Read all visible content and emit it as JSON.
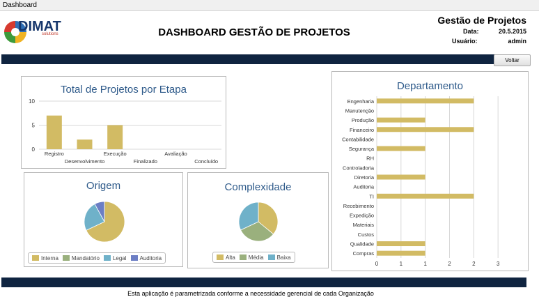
{
  "window": {
    "title": "Dashboard"
  },
  "header": {
    "logo_text": "DIMAT",
    "logo_sub": "solutions",
    "title": "DASHBOARD GESTÃO DE PROJETOS",
    "app_title": "Gestão de Projetos",
    "date_label": "Data:",
    "date_value": "20.5.2015",
    "user_label": "Usuário:",
    "user_value": "admin"
  },
  "toolbar": {
    "back_label": "Voltar"
  },
  "footer": {
    "text": "Esta aplicação é parametrizada conforme a necessidade gerencial de cada Organização"
  },
  "colors": {
    "gold": "#d2bb64",
    "sage": "#9ab07d",
    "sky": "#6fb1c9",
    "indigo": "#6c7ec4",
    "navy": "#0f2440",
    "title_blue": "#2e5a8a"
  },
  "chart_data": [
    {
      "type": "bar",
      "title": "Total de Projetos por Etapa",
      "categories": [
        "Registro",
        "Desenvolvimento",
        "Execução",
        "Finalizado",
        "Avaliação",
        "Concluído"
      ],
      "values": [
        7,
        2,
        5,
        0,
        0,
        0
      ],
      "ylim": [
        0,
        10
      ],
      "yticks": [
        0,
        5,
        10
      ],
      "grid": true
    },
    {
      "type": "pie",
      "title": "Origem",
      "categories": [
        "Interna",
        "Mandatório",
        "Legal",
        "Auditoria"
      ],
      "values": [
        68,
        0,
        24,
        8
      ],
      "legend": "bottom"
    },
    {
      "type": "pie",
      "title": "Complexidade",
      "categories": [
        "Alta",
        "Média",
        "Baixa"
      ],
      "values": [
        36,
        32,
        32
      ],
      "legend": "bottom"
    },
    {
      "type": "bar",
      "orientation": "horizontal",
      "title": "Departamento",
      "categories": [
        "Engenharia",
        "Manutenção",
        "Produção",
        "Financeiro",
        "Contabilidade",
        "Segurança",
        "RH",
        "Controladoria",
        "Diretoria",
        "Auditoria",
        "TI",
        "Recebimento",
        "Expedição",
        "Materiais",
        "Custos",
        "Qualidade",
        "Compras"
      ],
      "values": [
        2,
        0,
        1,
        2,
        0,
        1,
        0,
        0,
        1,
        0,
        2,
        0,
        0,
        0,
        0,
        1,
        1
      ],
      "xlim": [
        0,
        3
      ],
      "xticks": [
        "0",
        "1",
        "1",
        "2",
        "2",
        "3"
      ],
      "xtick_values": [
        0,
        0.5,
        1,
        1.5,
        2,
        2.5
      ],
      "grid": true
    }
  ]
}
